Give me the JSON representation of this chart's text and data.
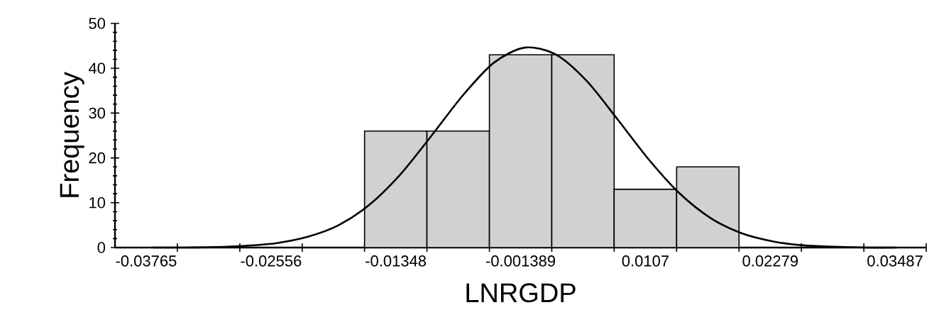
{
  "chart_data": {
    "type": "histogram",
    "xlabel": "LNRGDP",
    "ylabel": "Frequency",
    "bins": [
      -0.0165,
      -0.01046,
      -0.00441,
      0.00163,
      0.00767,
      0.01372,
      0.01976
    ],
    "series": [
      {
        "type": "histogram",
        "color": "#000000",
        "values": [
          26,
          26,
          43,
          43,
          13,
          18
        ]
      },
      {
        "type": "line",
        "color": "#000000",
        "x": [
          -0.037,
          -0.034,
          -0.031,
          -0.028,
          -0.025,
          -0.022,
          -0.019,
          -0.016,
          -0.013,
          -0.01,
          -0.007,
          -0.004,
          -0.001,
          0.002,
          0.005,
          0.008,
          0.011,
          0.014,
          0.017,
          0.02,
          0.023,
          0.026,
          0.029,
          0.032,
          0.035
        ],
        "values": [
          0,
          0,
          0.1,
          0.4,
          1,
          2.4,
          5,
          9.6,
          16.4,
          25,
          33.9,
          41.2,
          44.6,
          43.1,
          37.2,
          28.6,
          19.7,
          12.1,
          6.6,
          3.2,
          1.4,
          0.5,
          0.2,
          0,
          0
        ]
      }
    ],
    "xlim": [
      -0.04067,
      0.03789
    ],
    "ylim": [
      0,
      50
    ],
    "xticks": [
      -0.03765,
      {
        "value": -0.03463,
        "label": null
      },
      {
        "value": -0.02858,
        "label": null
      },
      -0.02556,
      {
        "value": -0.02254,
        "label": null
      },
      {
        "value": -0.0165,
        "label": null
      },
      -0.01348,
      {
        "value": -0.01046,
        "label": null
      },
      {
        "value": -0.00441,
        "label": null
      },
      -0.001389,
      {
        "value": 0.00163,
        "label": null
      },
      {
        "value": 0.00767,
        "label": null
      },
      0.0107,
      {
        "value": 0.01372,
        "label": null
      },
      {
        "value": 0.01976,
        "label": null
      },
      0.02279,
      {
        "value": 0.0258,
        "label": null
      },
      {
        "value": 0.03185,
        "label": null
      },
      0.03487,
      {
        "value": 0.03789,
        "label": null
      }
    ],
    "yticks": [
      0,
      10,
      20,
      30,
      40,
      50
    ]
  }
}
